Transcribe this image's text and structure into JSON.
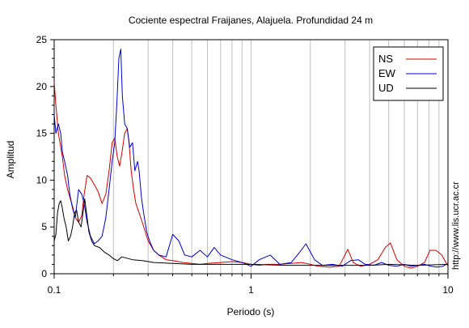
{
  "chart_data": {
    "type": "line",
    "title": "Cociente espectral Fraijanes, Alajuela. Profundidad 24 m",
    "xlabel": "Periodo (s)",
    "ylabel": "Amplitud",
    "x_scale": "log",
    "xlim": [
      0.1,
      10
    ],
    "ylim": [
      0,
      25
    ],
    "grid": "vertical-log-minor",
    "legend_position": "top-right",
    "x_ticks": [
      "0.1",
      "1",
      "10"
    ],
    "y_ticks": [
      "0",
      "5",
      "10",
      "15",
      "20",
      "25"
    ],
    "side_text": "http://www.lis.ucr.ac.cr",
    "series": [
      {
        "name": "NS",
        "color": "#d00000",
        "x": [
          0.1,
          0.102,
          0.105,
          0.108,
          0.11,
          0.113,
          0.117,
          0.12,
          0.124,
          0.128,
          0.133,
          0.138,
          0.142,
          0.147,
          0.153,
          0.16,
          0.167,
          0.175,
          0.183,
          0.19,
          0.197,
          0.203,
          0.209,
          0.215,
          0.221,
          0.228,
          0.235,
          0.24,
          0.246,
          0.253,
          0.26,
          0.27,
          0.28,
          0.29,
          0.3,
          0.32,
          0.34,
          0.37,
          0.4,
          0.45,
          0.5,
          0.55,
          0.6,
          0.7,
          0.8,
          0.9,
          1.0,
          1.1,
          1.2,
          1.4,
          1.6,
          1.8,
          2.0,
          2.2,
          2.5,
          2.8,
          3.1,
          3.3,
          3.6,
          4.0,
          4.4,
          4.8,
          5.1,
          5.5,
          6.0,
          6.5,
          7.0,
          7.6,
          8.1,
          8.7,
          9.3,
          10.0
        ],
        "y": [
          20.5,
          18,
          15,
          13.5,
          12.5,
          10.5,
          9,
          8.2,
          7.2,
          6,
          5.5,
          6.2,
          8.5,
          10.5,
          10.2,
          9.5,
          8.8,
          7.5,
          8.5,
          11,
          14,
          14.5,
          12.5,
          11.5,
          13,
          15,
          15.5,
          14,
          11,
          9,
          7.5,
          6.5,
          5.5,
          4.5,
          3.5,
          2.5,
          2.0,
          1.5,
          1.4,
          1.2,
          1.1,
          1.0,
          1.1,
          1.2,
          1.3,
          1.2,
          1.0,
          0.9,
          1.0,
          1.0,
          1.1,
          1.2,
          1.0,
          0.8,
          0.7,
          0.8,
          2.6,
          1.2,
          0.8,
          1.0,
          1.5,
          2.8,
          3.3,
          1.5,
          0.8,
          0.6,
          0.8,
          1.2,
          2.5,
          2.5,
          2.0,
          0.8
        ]
      },
      {
        "name": "EW",
        "color": "#0000cc",
        "x": [
          0.1,
          0.102,
          0.105,
          0.108,
          0.11,
          0.113,
          0.117,
          0.12,
          0.124,
          0.128,
          0.133,
          0.138,
          0.142,
          0.147,
          0.153,
          0.16,
          0.167,
          0.175,
          0.183,
          0.19,
          0.197,
          0.203,
          0.208,
          0.213,
          0.218,
          0.222,
          0.228,
          0.235,
          0.242,
          0.25,
          0.257,
          0.265,
          0.27,
          0.278,
          0.287,
          0.295,
          0.305,
          0.32,
          0.34,
          0.37,
          0.4,
          0.43,
          0.46,
          0.5,
          0.55,
          0.6,
          0.65,
          0.7,
          0.8,
          0.9,
          1.0,
          1.1,
          1.25,
          1.4,
          1.6,
          1.75,
          1.9,
          2.1,
          2.3,
          2.6,
          2.9,
          3.2,
          3.5,
          3.8,
          4.2,
          4.6,
          5.0,
          5.5,
          6.0,
          6.5,
          7.0,
          7.6,
          8.2,
          8.8,
          9.4,
          10.0
        ],
        "y": [
          17,
          15,
          16,
          15,
          13,
          12,
          10.5,
          8.5,
          7,
          6,
          9,
          8.5,
          7.5,
          5.5,
          4,
          3.2,
          3.5,
          4,
          6,
          9,
          12,
          14,
          18,
          23,
          24,
          19,
          16,
          15.5,
          13.5,
          14,
          11,
          12,
          11,
          8,
          6,
          4.5,
          3.5,
          2.5,
          2.0,
          1.8,
          4.2,
          3.5,
          2.0,
          1.8,
          2.5,
          1.8,
          2.8,
          2.0,
          1.5,
          1.2,
          0.8,
          1.5,
          2.0,
          1.0,
          1.2,
          2.2,
          3.2,
          1.5,
          0.9,
          1.0,
          0.8,
          1.4,
          1.5,
          1.0,
          0.9,
          1.2,
          0.9,
          0.8,
          1.0,
          0.8,
          0.9,
          1.0,
          0.8,
          0.7,
          0.8,
          1.1
        ]
      },
      {
        "name": "UD",
        "color": "#000000",
        "x": [
          0.1,
          0.102,
          0.104,
          0.106,
          0.108,
          0.11,
          0.112,
          0.115,
          0.118,
          0.121,
          0.124,
          0.127,
          0.13,
          0.133,
          0.137,
          0.14,
          0.143,
          0.147,
          0.15,
          0.155,
          0.16,
          0.17,
          0.18,
          0.19,
          0.2,
          0.21,
          0.22,
          0.23,
          0.25,
          0.28,
          0.32,
          0.4,
          0.5,
          0.7,
          1.0,
          1.5,
          2.0,
          3.0,
          4.0,
          5.0,
          7.0,
          10.0
        ],
        "y": [
          3.5,
          4.2,
          6.5,
          7.5,
          7.8,
          7.0,
          6.0,
          5.0,
          3.5,
          4.0,
          5.0,
          6.5,
          6.8,
          5.5,
          5.0,
          6.5,
          8.0,
          6.0,
          4.5,
          3.5,
          3.0,
          2.8,
          2.3,
          2.0,
          1.6,
          1.4,
          1.8,
          1.7,
          1.5,
          1.4,
          1.2,
          1.1,
          1.0,
          1.0,
          1.0,
          0.9,
          0.9,
          0.9,
          0.9,
          1.0,
          0.9,
          1.0
        ]
      }
    ]
  }
}
